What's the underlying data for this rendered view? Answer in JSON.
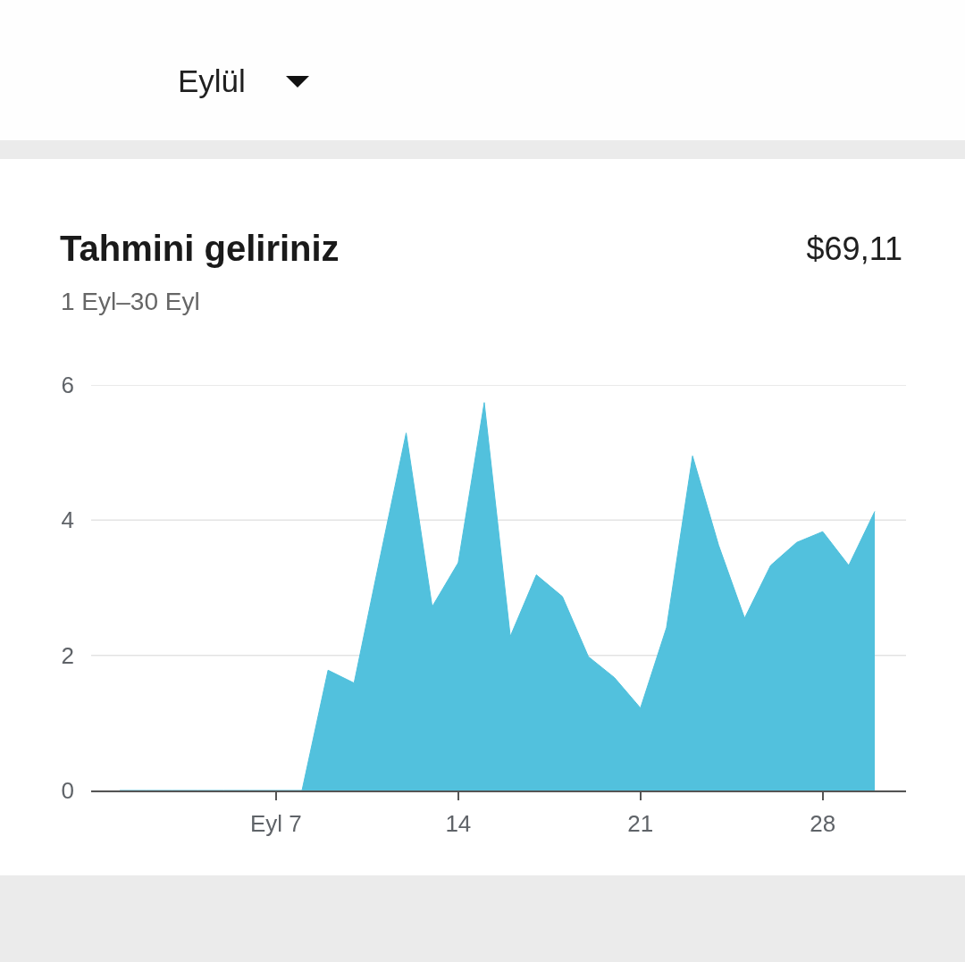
{
  "chart_data": {
    "type": "area",
    "title": "Tahmini geliriniz",
    "subtitle": "1 Eyl–30 Eyl",
    "annotations": [
      "$69,11",
      "Eylül"
    ],
    "x": [
      1,
      2,
      3,
      4,
      5,
      6,
      7,
      8,
      9,
      10,
      11,
      12,
      13,
      14,
      15,
      16,
      17,
      18,
      19,
      20,
      21,
      22,
      23,
      24,
      25,
      26,
      27,
      28,
      29,
      30
    ],
    "values": [
      0,
      0,
      0,
      0,
      0,
      0,
      0,
      0,
      1.78,
      1.59,
      3.45,
      5.29,
      2.72,
      3.37,
      5.74,
      2.28,
      3.19,
      2.87,
      1.98,
      1.67,
      1.22,
      2.41,
      4.95,
      3.63,
      2.55,
      3.33,
      3.67,
      3.83,
      3.33,
      4.13
    ],
    "color": "#4fc0dc",
    "xlim": [
      -0.1,
      31.2
    ],
    "xticks": [
      {
        "value": 7,
        "label": "Eyl 7"
      },
      14,
      21,
      28
    ],
    "ylim": [
      0,
      6
    ],
    "yticks": [
      0,
      2,
      4,
      6
    ],
    "grid": "y"
  }
}
